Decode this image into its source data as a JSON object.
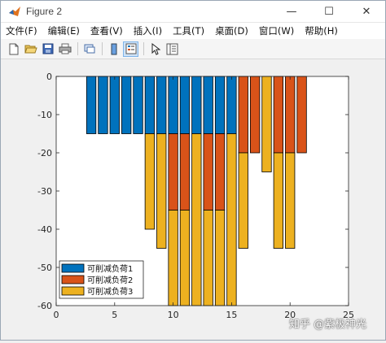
{
  "window": {
    "title": "Figure 2",
    "controls": {
      "minimize": "—",
      "maximize": "☐",
      "close": "✕"
    }
  },
  "menu": {
    "items": [
      "文件(F)",
      "编辑(E)",
      "查看(V)",
      "插入(I)",
      "工具(T)",
      "桌面(D)",
      "窗口(W)",
      "帮助(H)"
    ]
  },
  "toolbar": {
    "buttons": [
      "new-figure-icon",
      "open-icon",
      "save-icon",
      "print-icon",
      "link-icon",
      "colorbar-icon",
      "legend-icon",
      "pointer-icon",
      "property-editor-icon"
    ]
  },
  "watermark": "知乎 @紫极神光",
  "colors": {
    "series1": "#0072BD",
    "series2": "#D95319",
    "series3": "#EDB120",
    "axes_bg": "#ffffff",
    "figure_bg": "#f0f0f0"
  },
  "chart_data": {
    "type": "bar",
    "stacked": true,
    "x": [
      3,
      4,
      5,
      6,
      7,
      8,
      9,
      10,
      11,
      12,
      13,
      14,
      15,
      16,
      17,
      18,
      19,
      20,
      21
    ],
    "series": [
      {
        "name": "可削减负荷1",
        "values": [
          -15,
          -15,
          -15,
          -15,
          -15,
          -15,
          -15,
          -15,
          -15,
          -15,
          -15,
          -15,
          -15,
          0,
          0,
          0,
          0,
          0,
          0
        ]
      },
      {
        "name": "可削减负荷2",
        "values": [
          0,
          0,
          0,
          0,
          0,
          0,
          0,
          -20,
          -20,
          0,
          -20,
          -20,
          0,
          -20,
          -20,
          0,
          -20,
          -20,
          -20
        ]
      },
      {
        "name": "可削减负荷3",
        "values": [
          0,
          0,
          0,
          0,
          0,
          -25,
          -30,
          -25,
          -25,
          -45,
          -25,
          -25,
          -45,
          -25,
          0,
          -25,
          -25,
          -25,
          0
        ]
      }
    ],
    "xlim": [
      0,
      25
    ],
    "ylim": [
      -60,
      0
    ],
    "xticks": [
      0,
      5,
      10,
      15,
      20,
      25
    ],
    "yticks": [
      0,
      -10,
      -20,
      -30,
      -40,
      -50,
      -60
    ],
    "legend_position": "bottom-left",
    "title": "",
    "xlabel": "",
    "ylabel": ""
  }
}
